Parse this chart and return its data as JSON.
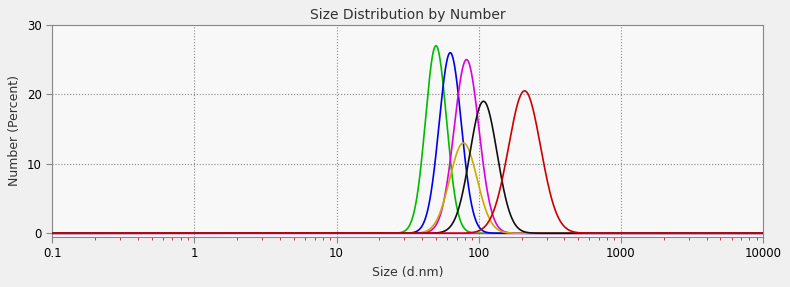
{
  "title": "Size Distribution by Number",
  "xlabel": "Size (d.nm)",
  "ylabel": "Number (Percent)",
  "ylim": [
    -0.5,
    30
  ],
  "xlim": [
    0.1,
    10000
  ],
  "yticks": [
    0,
    10,
    20,
    30
  ],
  "background_color": "#f0f0f0",
  "plot_bg_color": "#f8f8f8",
  "curves": [
    {
      "color": "#00bb00",
      "peak": 50,
      "sigma_log": 0.17,
      "amplitude": 27.0
    },
    {
      "color": "#0000ee",
      "peak": 63,
      "sigma_log": 0.18,
      "amplitude": 26.0
    },
    {
      "color": "#dd00dd",
      "peak": 82,
      "sigma_log": 0.2,
      "amplitude": 25.0
    },
    {
      "color": "#ccaa00",
      "peak": 78,
      "sigma_log": 0.22,
      "amplitude": 13.0
    },
    {
      "color": "#111111",
      "peak": 108,
      "sigma_log": 0.22,
      "amplitude": 19.0
    },
    {
      "color": "#cc0000",
      "peak": 210,
      "sigma_log": 0.26,
      "amplitude": 20.5
    }
  ],
  "baseline_color": "#ee00ee",
  "title_fontsize": 10,
  "axis_fontsize": 9,
  "tick_fontsize": 8.5
}
